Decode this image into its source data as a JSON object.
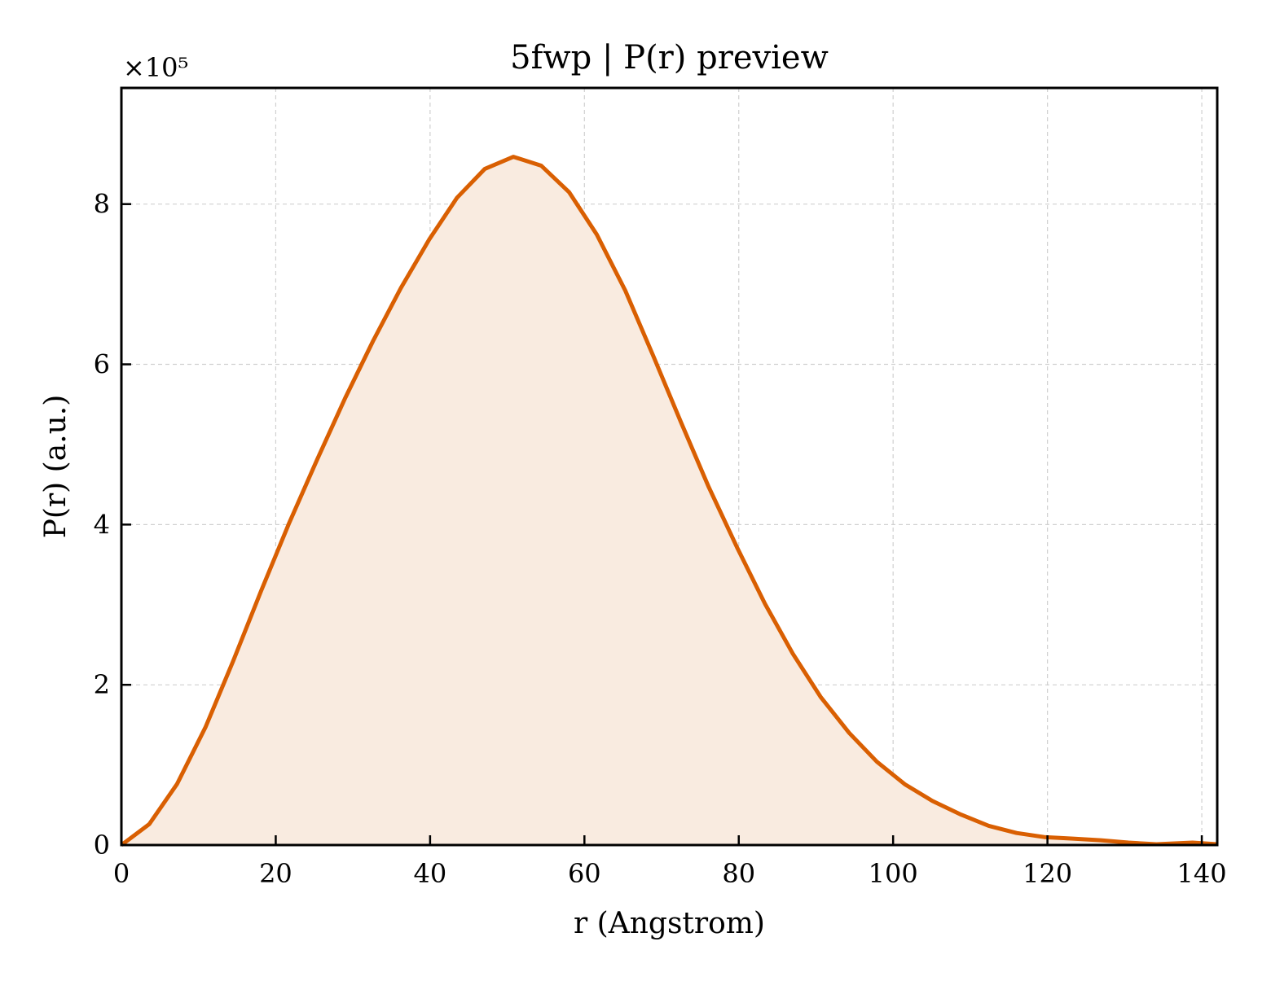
{
  "chart_data": {
    "type": "area",
    "title": "5fwp | P(r) preview",
    "xlabel": "r (Angstrom)",
    "ylabel": "P(r) (a.u.)",
    "y_offset_label": "×10⁵",
    "y_scale_factor": 100000,
    "xlim": [
      0,
      142
    ],
    "ylim": [
      0,
      9.45
    ],
    "x_ticks": [
      0,
      20,
      40,
      60,
      80,
      100,
      120,
      140
    ],
    "x_tick_labels": [
      "0",
      "20",
      "40",
      "60",
      "80",
      "100",
      "120",
      "140"
    ],
    "y_ticks": [
      0,
      2,
      4,
      6,
      8
    ],
    "y_tick_labels": [
      "0",
      "2",
      "4",
      "6",
      "8"
    ],
    "grid": true,
    "colors": {
      "line": "#d95f02",
      "fill": "#f9ebe0"
    },
    "series": [
      {
        "x": [
          0,
          3.6,
          7.2,
          10.9,
          14.5,
          18.1,
          21.7,
          25.4,
          29.0,
          32.6,
          36.2,
          39.9,
          43.5,
          47.1,
          50.8,
          54.4,
          58.0,
          61.6,
          65.3,
          68.9,
          72.5,
          76.1,
          79.8,
          83.4,
          87.0,
          90.6,
          94.3,
          97.9,
          101.5,
          105.1,
          108.8,
          112.4,
          116.0,
          119.6,
          123.3,
          126.9,
          130.5,
          134.1,
          138.8,
          142.0
        ],
        "values": [
          0.0,
          0.26,
          0.76,
          1.47,
          2.3,
          3.17,
          4.01,
          4.82,
          5.58,
          6.29,
          6.95,
          7.56,
          8.08,
          8.44,
          8.59,
          8.48,
          8.15,
          7.62,
          6.92,
          6.11,
          5.28,
          4.47,
          3.71,
          3.01,
          2.39,
          1.85,
          1.4,
          1.04,
          0.76,
          0.55,
          0.38,
          0.24,
          0.15,
          0.1,
          0.08,
          0.06,
          0.03,
          0.01,
          0.03,
          0.01
        ]
      }
    ]
  }
}
